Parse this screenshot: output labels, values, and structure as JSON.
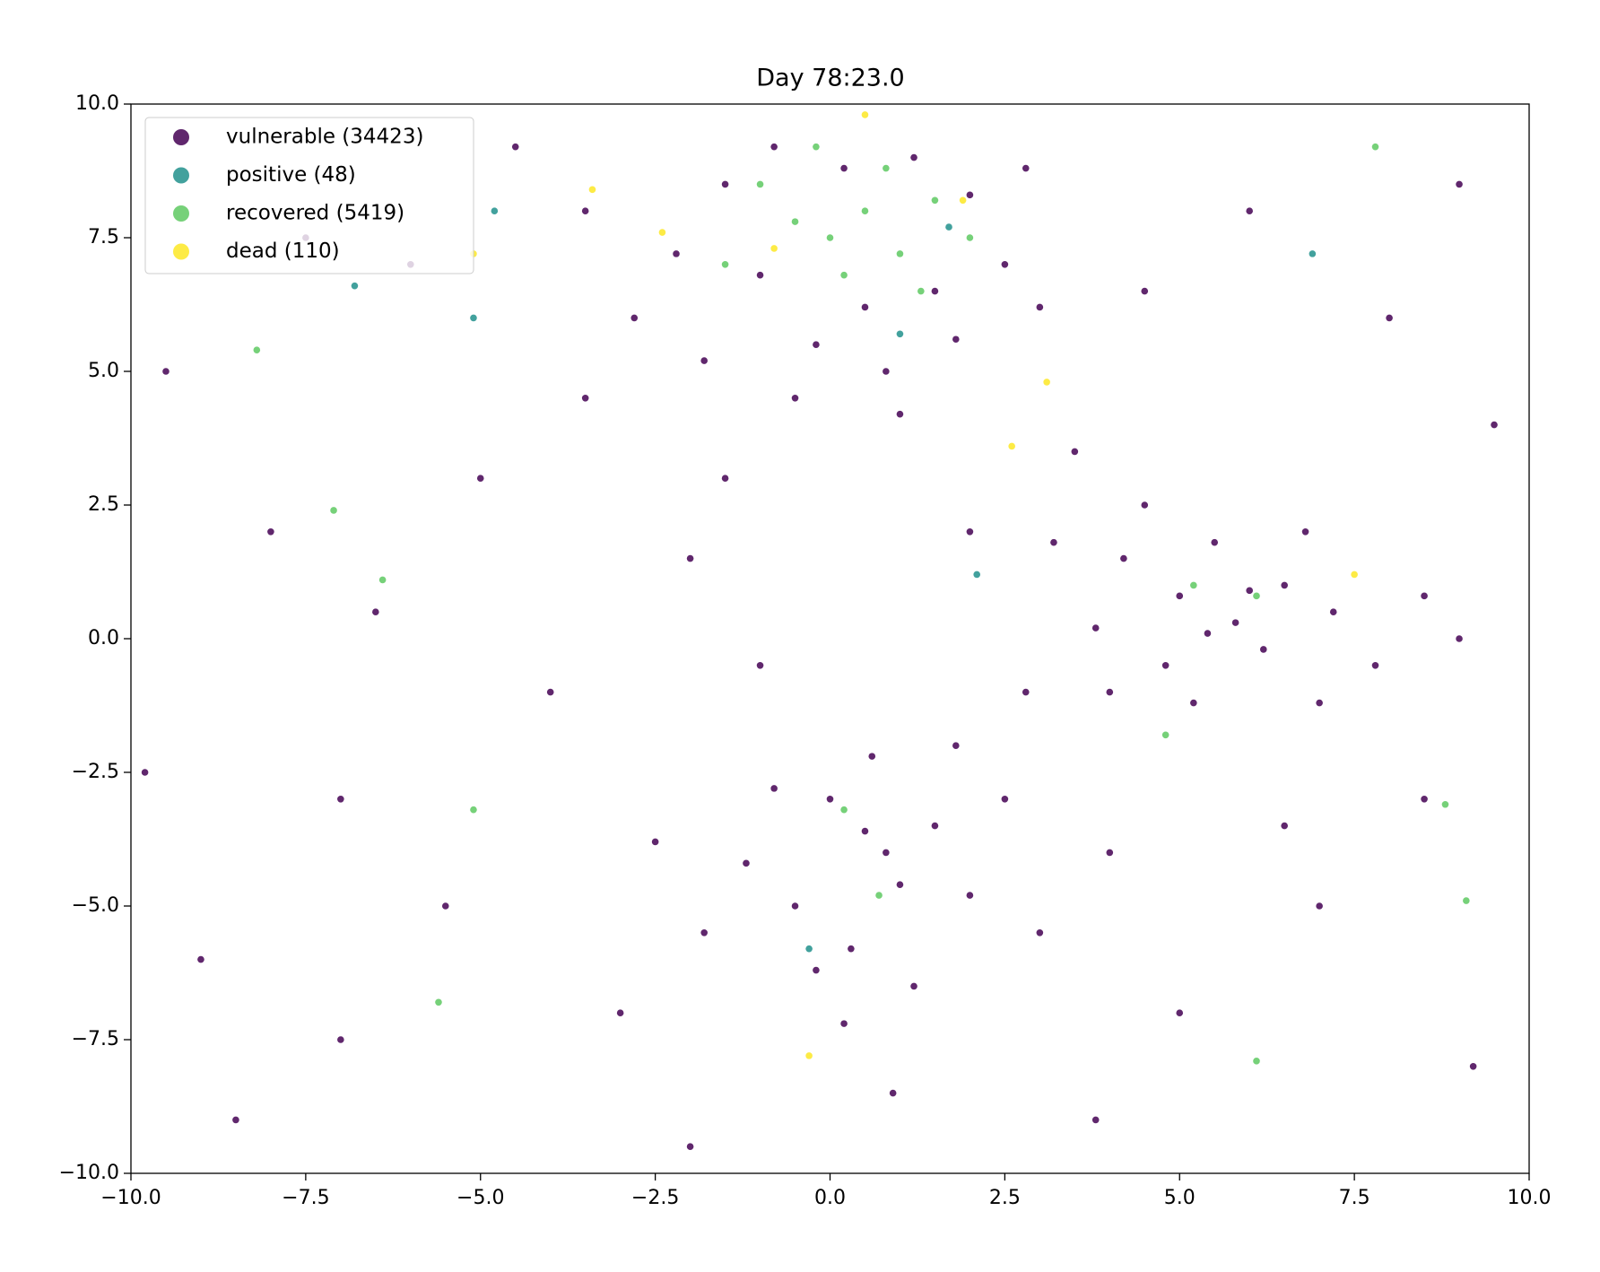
{
  "chart_data": {
    "type": "scatter",
    "title": "Day 78:23.0",
    "xlim": [
      -10,
      10
    ],
    "ylim": [
      -10,
      10
    ],
    "xticks": [
      {
        "value": -10,
        "label": "−10.0"
      },
      {
        "value": -7.5,
        "label": "−7.5"
      },
      {
        "value": -5,
        "label": "−5.0"
      },
      {
        "value": -2.5,
        "label": "−2.5"
      },
      {
        "value": 0,
        "label": "0.0"
      },
      2.5,
      {
        "value": 5,
        "label": "5.0"
      },
      7.5,
      {
        "value": 10,
        "label": "10.0"
      }
    ],
    "yticks": [
      {
        "value": -10,
        "label": "−10.0"
      },
      {
        "value": -7.5,
        "label": "−7.5"
      },
      {
        "value": -5,
        "label": "−5.0"
      },
      {
        "value": -2.5,
        "label": "−2.5"
      },
      {
        "value": 0,
        "label": "0.0"
      },
      2.5,
      {
        "value": 5,
        "label": "5.0"
      },
      7.5,
      {
        "value": 10,
        "label": "10.0"
      }
    ],
    "legend": "upper left",
    "series": [
      {
        "name": "vulnerable (34423)",
        "color": "#440154",
        "x": [
          -1.5,
          -0.8,
          0.2,
          1.2,
          2.0,
          -2.2,
          -1.0,
          0.5,
          1.5,
          2.5,
          -2.8,
          -0.2,
          0.8,
          1.8,
          -1.8,
          3.0,
          -3.5,
          2.8,
          -0.5,
          1.0,
          4.2,
          5.0,
          5.8,
          6.5,
          7.2,
          4.8,
          5.5,
          6.2,
          3.8,
          7.8,
          4.5,
          6.8,
          5.2,
          8.5,
          3.2,
          6.0,
          5.4,
          4.0,
          7.0,
          9.0,
          0.0,
          0.8,
          -0.5,
          1.5,
          0.3,
          -1.2,
          2.0,
          0.6,
          -0.8,
          1.2,
          0.2,
          2.5,
          -1.8,
          1.0,
          0.5,
          -0.2,
          1.8,
          3.0,
          -2.5,
          0.9,
          -9.5,
          -8.0,
          -7.0,
          -9.0,
          -6.0,
          -5.0,
          -4.0,
          -3.0,
          -8.5,
          -6.5,
          -5.5,
          -2.0,
          -1.0,
          2.0,
          3.5,
          8.0,
          9.0,
          6.0,
          4.5,
          9.5,
          8.5,
          7.0,
          5.0,
          9.2,
          3.8,
          -2.0,
          -9.8,
          -7.5,
          -4.5,
          2.8,
          -3.5,
          -1.5,
          6.5,
          4.0,
          -7.0
        ],
        "y": [
          8.5,
          9.2,
          8.8,
          9.0,
          8.3,
          7.2,
          6.8,
          6.2,
          6.5,
          7.0,
          6.0,
          5.5,
          5.0,
          5.6,
          5.2,
          6.2,
          8.0,
          8.8,
          4.5,
          4.2,
          1.5,
          0.8,
          0.3,
          1.0,
          0.5,
          -0.5,
          1.8,
          -0.2,
          0.2,
          -0.5,
          2.5,
          2.0,
          -1.2,
          0.8,
          1.8,
          0.9,
          0.1,
          -1.0,
          -1.2,
          0.0,
          -3.0,
          -4.0,
          -5.0,
          -3.5,
          -5.8,
          -4.2,
          -4.8,
          -2.2,
          -2.8,
          -6.5,
          -7.2,
          -3.0,
          -5.5,
          -4.6,
          -3.6,
          -6.2,
          -2.0,
          -5.5,
          -3.8,
          -8.5,
          5.0,
          2.0,
          -3.0,
          -6.0,
          7.0,
          3.0,
          -1.0,
          -7.0,
          -9.0,
          0.5,
          -5.0,
          1.5,
          -0.5,
          2.0,
          3.5,
          6.0,
          8.5,
          8.0,
          6.5,
          4.0,
          -3.0,
          -5.0,
          -7.0,
          -8.0,
          -9.0,
          -9.5,
          -2.5,
          7.5,
          9.2,
          -1.0,
          4.5,
          3.0,
          -3.5,
          -4.0,
          -7.5
        ]
      },
      {
        "name": "positive (48)",
        "color": "#21918c",
        "x": [
          -4.8,
          -5.1,
          1.0,
          1.7,
          6.9,
          -0.3,
          2.1,
          -6.8
        ],
        "y": [
          8.0,
          6.0,
          5.7,
          7.7,
          7.2,
          -5.8,
          1.2,
          6.6
        ]
      },
      {
        "name": "recovered (5419)",
        "color": "#5ec962",
        "x": [
          0.0,
          0.5,
          1.0,
          -0.5,
          -1.0,
          1.5,
          0.2,
          -1.5,
          2.0,
          0.8,
          -0.2,
          1.3,
          -8.2,
          -7.1,
          -6.4,
          -5.1,
          -5.6,
          4.8,
          6.1,
          8.8,
          9.1,
          7.8,
          5.2,
          6.1,
          0.7,
          0.2
        ],
        "y": [
          7.5,
          8.0,
          7.2,
          7.8,
          8.5,
          8.2,
          6.8,
          7.0,
          7.5,
          8.8,
          9.2,
          6.5,
          5.4,
          2.4,
          1.1,
          -3.2,
          -6.8,
          -1.8,
          -7.9,
          -3.1,
          -4.9,
          9.2,
          1.0,
          0.8,
          -4.8,
          -3.2
        ]
      },
      {
        "name": "dead (110)",
        "color": "#fde725",
        "x": [
          -2.4,
          -3.4,
          0.5,
          3.1,
          2.6,
          7.5,
          -0.3,
          -5.1,
          -0.8,
          1.9
        ],
        "y": [
          7.6,
          8.4,
          9.8,
          4.8,
          3.6,
          1.2,
          -7.8,
          7.2,
          7.3,
          8.2
        ]
      }
    ]
  }
}
